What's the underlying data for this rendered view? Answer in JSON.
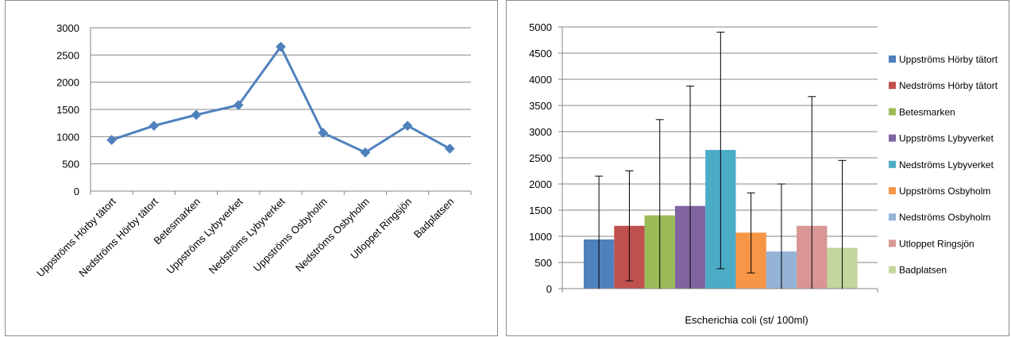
{
  "chart_data": [
    {
      "type": "line",
      "categories": [
        "Uppströms Hörby tätort",
        "Nedströms Hörby tätort",
        "Betesmarken",
        "Uppströms Lybyverket",
        "Nedströms Lybyverket",
        "Uppströms Osbyholm",
        "Nedströms Osbyholm",
        "Utloppet Ringsjön",
        "Badplatsen"
      ],
      "series": [
        {
          "values": [
            940,
            1200,
            1400,
            1580,
            2650,
            1070,
            710,
            1200,
            780
          ]
        }
      ],
      "ylim": [
        0,
        3000
      ],
      "yticks": [
        "0",
        "500",
        "1000",
        "1500",
        "2000",
        "2500",
        "3000"
      ],
      "grid": true,
      "color": "#4f81bd"
    },
    {
      "type": "bar",
      "xlabel": "Escherichia coli (st/ 100ml)",
      "ylim": [
        0,
        5000
      ],
      "yticks": [
        "0",
        "500",
        "1000",
        "1500",
        "2000",
        "2500",
        "3000",
        "3500",
        "4000",
        "4500",
        "5000"
      ],
      "grid": true,
      "legend_position": "right",
      "series": [
        {
          "name": "Uppströms Hörby tätort",
          "value": 940,
          "error_low": 0,
          "error_high": 2150,
          "color": "#4f81bd"
        },
        {
          "name": "Nedströms Hörby tätort",
          "value": 1200,
          "error_low": 150,
          "error_high": 2250,
          "color": "#c0504d"
        },
        {
          "name": "Betesmarken",
          "value": 1400,
          "error_low": 0,
          "error_high": 3230,
          "color": "#9bbb59"
        },
        {
          "name": "Uppströms Lybyverket",
          "value": 1580,
          "error_low": 0,
          "error_high": 3870,
          "color": "#8064a2"
        },
        {
          "name": "Nedströms Lybyverket",
          "value": 2650,
          "error_low": 380,
          "error_high": 4900,
          "color": "#4bacc6"
        },
        {
          "name": "Uppströms Osbyholm",
          "value": 1070,
          "error_low": 300,
          "error_high": 1830,
          "color": "#f79646"
        },
        {
          "name": "Nedströms Osbyholm",
          "value": 710,
          "error_low": 0,
          "error_high": 2000,
          "color": "#95b3d7"
        },
        {
          "name": "Utloppet Ringsjön",
          "value": 1200,
          "error_low": 0,
          "error_high": 3670,
          "color": "#d99694"
        },
        {
          "name": "Badplatsen",
          "value": 780,
          "error_low": 0,
          "error_high": 2450,
          "color": "#c3d69b"
        }
      ]
    }
  ]
}
